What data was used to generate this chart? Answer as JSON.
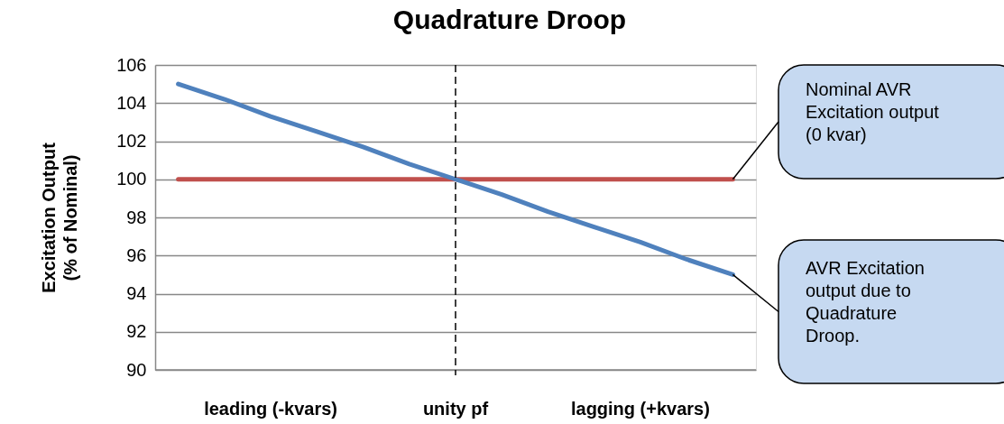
{
  "chart_data": {
    "type": "line",
    "title": "Quadrature Droop",
    "ylabel": "Excitation Output\n(% of Nominal)",
    "categories": [
      null,
      null,
      "leading (-kvars)",
      null,
      null,
      null,
      "unity pf",
      null,
      null,
      null,
      "lagging (+kvars)",
      null,
      null
    ],
    "series": [
      {
        "color": "#c0504d",
        "values": [
          100,
          100,
          100,
          100,
          100,
          100,
          100,
          100,
          100,
          100,
          100,
          100,
          100
        ]
      },
      {
        "color": "#4f81bd",
        "values": [
          105,
          104.2,
          103.3,
          102.5,
          101.7,
          100.8,
          100,
          99.2,
          98.3,
          97.5,
          96.7,
          95.8,
          95
        ]
      }
    ],
    "ylim": [
      90,
      106
    ],
    "yticks": [
      90,
      92,
      94,
      96,
      98,
      100,
      102,
      104,
      106
    ],
    "grid": "y",
    "marker": "none",
    "line_style": "solid",
    "ref_lines": [
      {
        "axis": "x",
        "value": "unity pf",
        "color": "#000000",
        "line_style": "dashed"
      }
    ],
    "annotations": [
      "Nominal AVR\nExcitation output\n(0 kvar)",
      "AVR Excitation\noutput due to\nQuadrature\nDroop."
    ]
  }
}
